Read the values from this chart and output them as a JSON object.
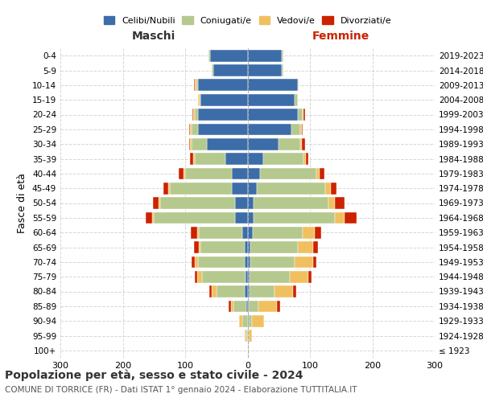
{
  "age_groups": [
    "100+",
    "95-99",
    "90-94",
    "85-89",
    "80-84",
    "75-79",
    "70-74",
    "65-69",
    "60-64",
    "55-59",
    "50-54",
    "45-49",
    "40-44",
    "35-39",
    "30-34",
    "25-29",
    "20-24",
    "15-19",
    "10-14",
    "5-9",
    "0-4"
  ],
  "birth_years": [
    "≤ 1923",
    "1924-1928",
    "1929-1933",
    "1934-1938",
    "1939-1943",
    "1944-1948",
    "1949-1953",
    "1954-1958",
    "1959-1963",
    "1964-1968",
    "1969-1973",
    "1974-1978",
    "1979-1983",
    "1984-1988",
    "1989-1993",
    "1994-1998",
    "1999-2003",
    "2004-2008",
    "2009-2013",
    "2014-2018",
    "2019-2023"
  ],
  "males": {
    "celibi": [
      0,
      0,
      0,
      2,
      5,
      3,
      5,
      5,
      8,
      20,
      20,
      25,
      25,
      35,
      65,
      80,
      80,
      75,
      80,
      55,
      60
    ],
    "coniugati": [
      0,
      2,
      8,
      20,
      45,
      70,
      75,
      70,
      70,
      130,
      120,
      100,
      75,
      50,
      25,
      10,
      5,
      2,
      2,
      2,
      2
    ],
    "vedovi": [
      0,
      2,
      5,
      5,
      8,
      8,
      5,
      3,
      3,
      3,
      3,
      2,
      2,
      2,
      2,
      2,
      2,
      2,
      2,
      0,
      0
    ],
    "divorziati": [
      0,
      0,
      0,
      3,
      3,
      3,
      5,
      8,
      10,
      10,
      8,
      8,
      8,
      5,
      2,
      2,
      2,
      0,
      2,
      0,
      0
    ]
  },
  "females": {
    "nubili": [
      0,
      0,
      2,
      2,
      3,
      3,
      5,
      5,
      8,
      10,
      10,
      15,
      20,
      25,
      50,
      70,
      80,
      75,
      80,
      55,
      55
    ],
    "coniugate": [
      0,
      2,
      5,
      15,
      40,
      65,
      70,
      75,
      80,
      130,
      120,
      110,
      90,
      65,
      35,
      15,
      8,
      5,
      2,
      2,
      2
    ],
    "vedove": [
      2,
      5,
      20,
      30,
      30,
      30,
      30,
      25,
      20,
      15,
      10,
      8,
      5,
      3,
      2,
      2,
      2,
      0,
      0,
      0,
      0
    ],
    "divorziate": [
      0,
      0,
      0,
      5,
      5,
      5,
      5,
      8,
      10,
      20,
      15,
      10,
      8,
      5,
      5,
      2,
      2,
      0,
      0,
      0,
      0
    ]
  },
  "colors": {
    "celibi": "#3d6da8",
    "coniugati": "#b5c98e",
    "vedovi": "#f0c060",
    "divorziati": "#cc2200"
  },
  "xlim": 300,
  "title": "Popolazione per età, sesso e stato civile - 2024",
  "subtitle": "COMUNE DI TORRICE (FR) - Dati ISTAT 1° gennaio 2024 - Elaborazione TUTTITALIA.IT",
  "xlabel_left": "Maschi",
  "xlabel_right": "Femmine",
  "ylabel_left": "Fasce di età",
  "legend_labels": [
    "Celibi/Nubili",
    "Coniugati/e",
    "Vedovi/e",
    "Divorziati/e"
  ],
  "background_color": "#ffffff",
  "grid_color": "#cccccc"
}
